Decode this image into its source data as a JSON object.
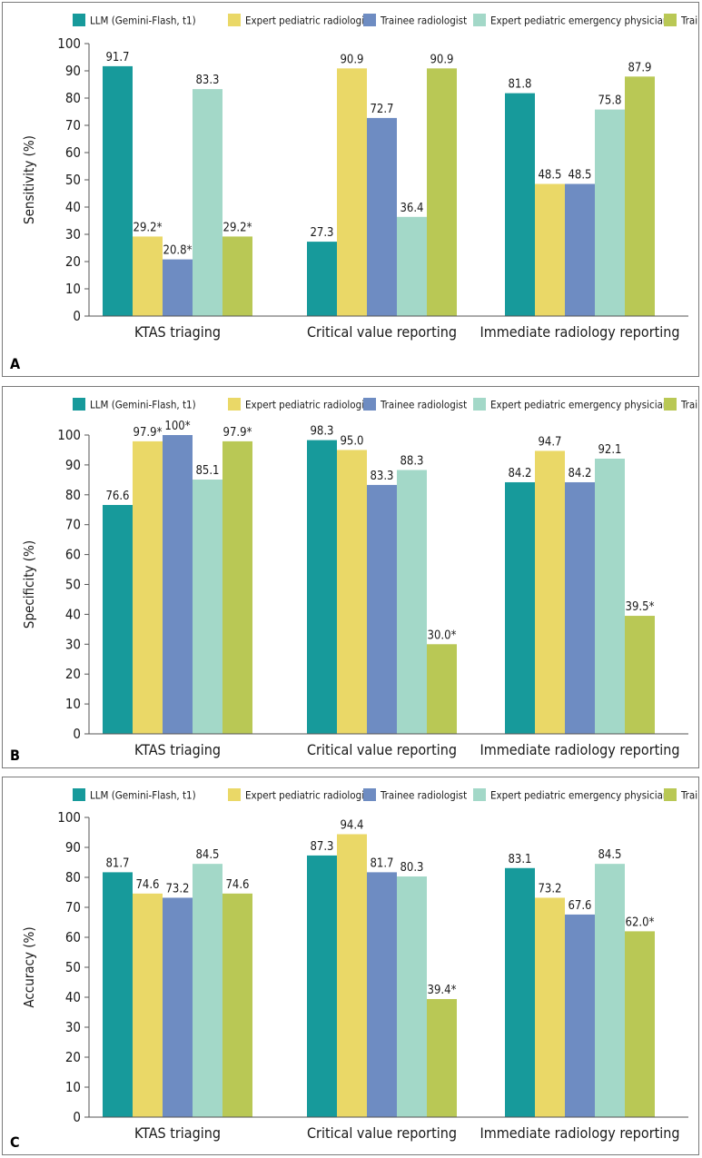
{
  "colors": {
    "llm": "#179a9b",
    "expert_radiologist": "#ead867",
    "trainee_radiologist": "#6e8cc2",
    "expert_emergency": "#a3d8c8",
    "trainee_pediatrician": "#b9c855"
  },
  "legend": [
    "LLM (Gemini-Flash, t1)",
    "Expert pediatric radiologist",
    "Trainee radiologist",
    "Expert pediatric emergency physician",
    "Trainee pediatrician"
  ],
  "chart_data": [
    {
      "type": "bar",
      "panel_label": "A",
      "ylabel": "Sensitivity (%)",
      "ylim": [
        0,
        100
      ],
      "yticks": [
        0,
        10,
        20,
        30,
        40,
        50,
        60,
        70,
        80,
        90,
        100
      ],
      "categories": [
        "KTAS triaging",
        "Critical value reporting",
        "Immediate radiology reporting"
      ],
      "series": [
        {
          "name": "LLM (Gemini-Flash, t1)",
          "values": [
            91.7,
            27.3,
            81.8
          ],
          "labels": [
            "91.7",
            "27.3",
            "81.8"
          ]
        },
        {
          "name": "Expert pediatric radiologist",
          "values": [
            29.2,
            90.9,
            48.5
          ],
          "labels": [
            "29.2*",
            "90.9",
            "48.5"
          ]
        },
        {
          "name": "Trainee radiologist",
          "values": [
            20.8,
            72.7,
            48.5
          ],
          "labels": [
            "20.8*",
            "72.7",
            "48.5"
          ]
        },
        {
          "name": "Expert pediatric emergency physician",
          "values": [
            83.3,
            36.4,
            75.8
          ],
          "labels": [
            "83.3",
            "36.4",
            "75.8"
          ]
        },
        {
          "name": "Trainee pediatrician",
          "values": [
            29.2,
            90.9,
            87.9
          ],
          "labels": [
            "29.2*",
            "90.9",
            "87.9"
          ]
        }
      ]
    },
    {
      "type": "bar",
      "panel_label": "B",
      "ylabel": "Specificity (%)",
      "ylim": [
        0,
        100
      ],
      "yticks": [
        0,
        10,
        20,
        30,
        40,
        50,
        60,
        70,
        80,
        90,
        100
      ],
      "categories": [
        "KTAS triaging",
        "Critical value reporting",
        "Immediate radiology reporting"
      ],
      "series": [
        {
          "name": "LLM (Gemini-Flash, t1)",
          "values": [
            76.6,
            98.3,
            84.2
          ],
          "labels": [
            "76.6",
            "98.3",
            "84.2"
          ]
        },
        {
          "name": "Expert pediatric radiologist",
          "values": [
            97.9,
            95.0,
            94.7
          ],
          "labels": [
            "97.9*",
            "95.0",
            "94.7"
          ]
        },
        {
          "name": "Trainee radiologist",
          "values": [
            100,
            83.3,
            84.2
          ],
          "labels": [
            "100*",
            "83.3",
            "84.2"
          ]
        },
        {
          "name": "Expert pediatric emergency physician",
          "values": [
            85.1,
            88.3,
            92.1
          ],
          "labels": [
            "85.1",
            "88.3",
            "92.1"
          ]
        },
        {
          "name": "Trainee pediatrician",
          "values": [
            97.9,
            30.0,
            39.5
          ],
          "labels": [
            "97.9*",
            "30.0*",
            "39.5*"
          ]
        }
      ]
    },
    {
      "type": "bar",
      "panel_label": "C",
      "ylabel": "Accuracy (%)",
      "ylim": [
        0,
        100
      ],
      "yticks": [
        0,
        10,
        20,
        30,
        40,
        50,
        60,
        70,
        80,
        90,
        100
      ],
      "categories": [
        "KTAS triaging",
        "Critical value reporting",
        "Immediate radiology reporting"
      ],
      "series": [
        {
          "name": "LLM (Gemini-Flash, t1)",
          "values": [
            81.7,
            87.3,
            83.1
          ],
          "labels": [
            "81.7",
            "87.3",
            "83.1"
          ]
        },
        {
          "name": "Expert pediatric radiologist",
          "values": [
            74.6,
            94.4,
            73.2
          ],
          "labels": [
            "74.6",
            "94.4",
            "73.2"
          ]
        },
        {
          "name": "Trainee radiologist",
          "values": [
            73.2,
            81.7,
            67.6
          ],
          "labels": [
            "73.2",
            "81.7",
            "67.6"
          ]
        },
        {
          "name": "Expert pediatric emergency physician",
          "values": [
            84.5,
            80.3,
            84.5
          ],
          "labels": [
            "84.5",
            "80.3",
            "84.5"
          ]
        },
        {
          "name": "Trainee pediatrician",
          "values": [
            74.6,
            39.4,
            62.0
          ],
          "labels": [
            "74.6",
            "39.4*",
            "62.0*"
          ]
        }
      ]
    }
  ]
}
